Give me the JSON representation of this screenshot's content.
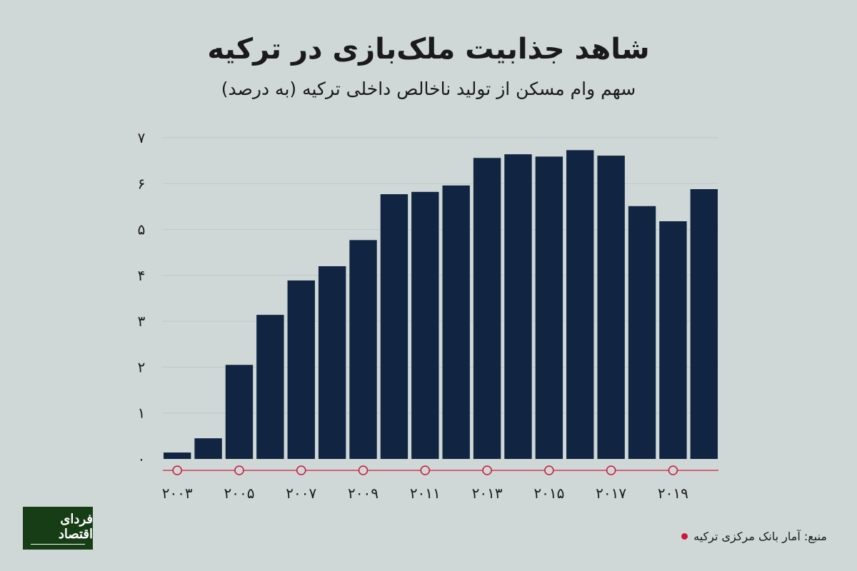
{
  "title": "شاهد جذابیت ملک‌بازی در ترکیه",
  "subtitle": "سهم وام مسکن از تولید ناخالص داخلی ترکیه (به درصد)",
  "source": "منبع: آمار بانک مرکزی ترکیه",
  "logo_text": "فردای اقتصاد",
  "colors": {
    "bar": "#112442",
    "axis": "#d0637a",
    "marker": "#c8163c",
    "background": "#cfd8d7"
  },
  "chart_data": {
    "type": "bar",
    "title": "شاهد جذابیت ملک‌بازی در ترکیه",
    "subtitle": "سهم وام مسکن از تولید ناخالص داخلی ترکیه (به درصد)",
    "categories": [
      2003,
      2004,
      2005,
      2006,
      2007,
      2008,
      2009,
      2010,
      2011,
      2012,
      2013,
      2014,
      2015,
      2016,
      2017,
      2018,
      2019,
      2020
    ],
    "values": [
      0.14,
      0.45,
      2.05,
      3.14,
      3.89,
      4.2,
      4.77,
      5.77,
      5.82,
      5.96,
      6.56,
      6.64,
      6.59,
      6.73,
      6.61,
      5.51,
      5.18,
      5.88
    ],
    "ylim": [
      0,
      7
    ],
    "y_ticks": [
      "۰",
      "۱",
      "۲",
      "۳",
      "۴",
      "۵",
      "۶",
      "۷"
    ],
    "x_tick_labels": [
      "۲۰۰۳",
      "۲۰۰۵",
      "۲۰۰۷",
      "۲۰۰۹",
      "۲۰۱۱",
      "۲۰۱۳",
      "۲۰۱۵",
      "۲۰۱۷",
      "۲۰۱۹"
    ],
    "grid": true,
    "xlabel": "",
    "ylabel": ""
  }
}
